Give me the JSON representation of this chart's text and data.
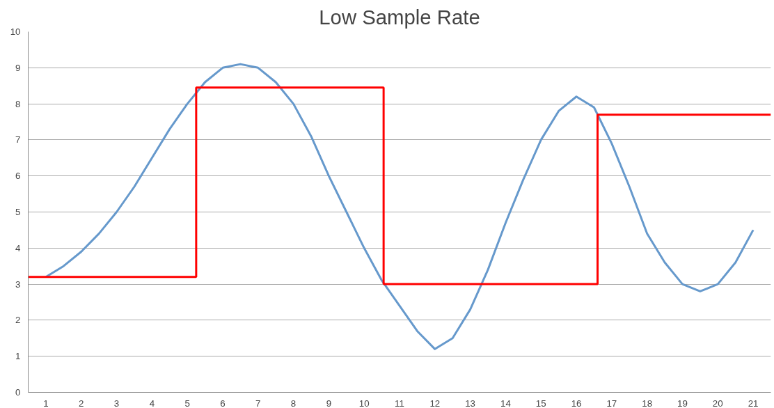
{
  "chart_data": {
    "type": "line",
    "title": "Low Sample Rate",
    "xlim": [
      0.5,
      21.5
    ],
    "xticks": [
      1,
      2,
      3,
      4,
      5,
      6,
      7,
      8,
      9,
      10,
      11,
      12,
      13,
      14,
      15,
      16,
      17,
      18,
      19,
      20,
      21
    ],
    "ylim": [
      0,
      10
    ],
    "yticks": [
      0,
      1,
      2,
      3,
      4,
      5,
      6,
      7,
      8,
      9,
      10
    ],
    "grid": "y",
    "series": [
      {
        "color": "#6699cc",
        "x": [
          1,
          1.5,
          2,
          2.5,
          3,
          3.5,
          4,
          4.5,
          5,
          5.5,
          6,
          6.5,
          7,
          7.5,
          8,
          8.5,
          9,
          9.5,
          10,
          10.5,
          11,
          11.5,
          12,
          12.5,
          13,
          13.5,
          14,
          14.5,
          15,
          15.5,
          16,
          16.5,
          17,
          17.5,
          18,
          18.5,
          19,
          19.5,
          20,
          20.5,
          21
        ],
        "values": [
          3.2,
          3.5,
          3.9,
          4.4,
          5.0,
          5.7,
          6.5,
          7.3,
          8.0,
          8.6,
          9.0,
          9.1,
          9.0,
          8.6,
          8.0,
          7.1,
          6.0,
          5.0,
          4.0,
          3.1,
          2.4,
          1.7,
          1.2,
          1.5,
          2.3,
          3.4,
          4.7,
          5.9,
          7.0,
          7.8,
          8.2,
          7.9,
          6.9,
          5.7,
          4.4,
          3.6,
          3.0,
          2.8,
          3.0,
          3.6,
          4.5
        ]
      },
      {
        "type": "step",
        "color": "#ff0000",
        "x": [
          0.5,
          5.25,
          10.55,
          16.6,
          21.5
        ],
        "values": [
          3.2,
          8.45,
          3.0,
          7.7,
          7.7
        ]
      }
    ]
  }
}
